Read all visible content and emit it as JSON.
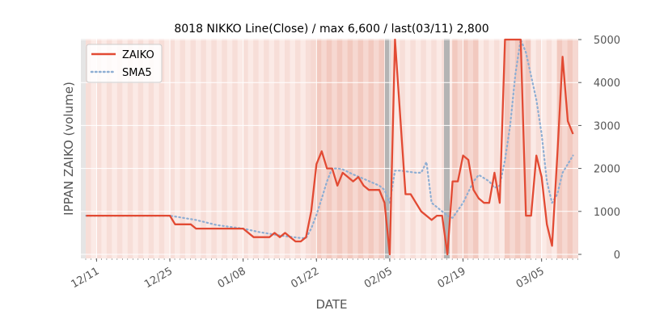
{
  "chart_data": {
    "type": "line",
    "title": "8018 NIKKO Line(Close) / max 6,600 / last(03/11) 2,800",
    "xlabel": "DATE",
    "ylabel": "IPPAN ZAIKO (volume)",
    "ylim": [
      0,
      5000
    ],
    "yticks": [
      0,
      1000,
      2000,
      3000,
      4000,
      5000
    ],
    "xlim": [
      "2023-12-08",
      "2024-03-12"
    ],
    "xticks": [
      {
        "date": "2023-12-11",
        "label": "12/11"
      },
      {
        "date": "2023-12-25",
        "label": "12/25"
      },
      {
        "date": "2024-01-08",
        "label": "01/08"
      },
      {
        "date": "2024-01-22",
        "label": "01/22"
      },
      {
        "date": "2024-02-05",
        "label": "02/05"
      },
      {
        "date": "2024-02-19",
        "label": "02/19"
      },
      {
        "date": "2024-03-05",
        "label": "03/05"
      }
    ],
    "grid": true,
    "legend_position": "top-left",
    "series": [
      {
        "name": "ZAIKO",
        "color": "#e24a33",
        "style": "solid",
        "points": [
          [
            "2023-12-09",
            900
          ],
          [
            "2023-12-25",
            900
          ],
          [
            "2023-12-26",
            700
          ],
          [
            "2023-12-29",
            700
          ],
          [
            "2023-12-30",
            600
          ],
          [
            "2024-01-08",
            600
          ],
          [
            "2024-01-10",
            400
          ],
          [
            "2024-01-13",
            400
          ],
          [
            "2024-01-14",
            500
          ],
          [
            "2024-01-15",
            400
          ],
          [
            "2024-01-16",
            500
          ],
          [
            "2024-01-17",
            400
          ],
          [
            "2024-01-18",
            300
          ],
          [
            "2024-01-19",
            300
          ],
          [
            "2024-01-20",
            400
          ],
          [
            "2024-01-21",
            1000
          ],
          [
            "2024-01-22",
            2100
          ],
          [
            "2024-01-23",
            2400
          ],
          [
            "2024-01-24",
            2000
          ],
          [
            "2024-01-25",
            2000
          ],
          [
            "2024-01-26",
            1600
          ],
          [
            "2024-01-27",
            1900
          ],
          [
            "2024-01-29",
            1700
          ],
          [
            "2024-01-30",
            1800
          ],
          [
            "2024-01-31",
            1600
          ],
          [
            "2024-02-01",
            1500
          ],
          [
            "2024-02-03",
            1500
          ],
          [
            "2024-02-04",
            1200
          ],
          [
            "2024-02-05",
            0
          ],
          [
            "2024-02-06",
            5000
          ],
          [
            "2024-02-07",
            3200
          ],
          [
            "2024-02-08",
            1400
          ],
          [
            "2024-02-09",
            1400
          ],
          [
            "2024-02-10",
            1200
          ],
          [
            "2024-02-11",
            1000
          ],
          [
            "2024-02-13",
            800
          ],
          [
            "2024-02-14",
            900
          ],
          [
            "2024-02-15",
            900
          ],
          [
            "2024-02-16",
            0
          ],
          [
            "2024-02-17",
            1700
          ],
          [
            "2024-02-18",
            1700
          ],
          [
            "2024-02-19",
            2300
          ],
          [
            "2024-02-20",
            2200
          ],
          [
            "2024-02-21",
            1500
          ],
          [
            "2024-02-22",
            1300
          ],
          [
            "2024-02-23",
            1200
          ],
          [
            "2024-02-24",
            1200
          ],
          [
            "2024-02-25",
            1900
          ],
          [
            "2024-02-26",
            1200
          ],
          [
            "2024-02-27",
            5000
          ],
          [
            "2024-03-01",
            5000
          ],
          [
            "2024-03-02",
            900
          ],
          [
            "2024-03-03",
            900
          ],
          [
            "2024-03-04",
            2300
          ],
          [
            "2024-03-05",
            1800
          ],
          [
            "2024-03-06",
            700
          ],
          [
            "2024-03-07",
            200
          ],
          [
            "2024-03-08",
            2300
          ],
          [
            "2024-03-09",
            4600
          ],
          [
            "2024-03-10",
            3100
          ],
          [
            "2024-03-11",
            2800
          ]
        ]
      },
      {
        "name": "SMA5",
        "color": "#8eaed3",
        "style": "dotted",
        "points": [
          [
            "2023-12-09",
            900
          ],
          [
            "2023-12-25",
            900
          ],
          [
            "2023-12-30",
            800
          ],
          [
            "2024-01-03",
            680
          ],
          [
            "2024-01-08",
            600
          ],
          [
            "2024-01-11",
            520
          ],
          [
            "2024-01-15",
            440
          ],
          [
            "2024-01-19",
            380
          ],
          [
            "2024-01-20",
            380
          ],
          [
            "2024-01-21",
            600
          ],
          [
            "2024-01-22",
            920
          ],
          [
            "2024-01-23",
            1300
          ],
          [
            "2024-01-24",
            1700
          ],
          [
            "2024-01-25",
            2000
          ],
          [
            "2024-01-26",
            2000
          ],
          [
            "2024-01-27",
            1980
          ],
          [
            "2024-01-29",
            1860
          ],
          [
            "2024-01-31",
            1760
          ],
          [
            "2024-02-03",
            1600
          ],
          [
            "2024-02-04",
            1500
          ],
          [
            "2024-02-05",
            1200
          ],
          [
            "2024-02-06",
            1950
          ],
          [
            "2024-02-07",
            1950
          ],
          [
            "2024-02-10",
            1900
          ],
          [
            "2024-02-11",
            1900
          ],
          [
            "2024-02-12",
            2150
          ],
          [
            "2024-02-13",
            1200
          ],
          [
            "2024-02-15",
            1000
          ],
          [
            "2024-02-16",
            900
          ],
          [
            "2024-02-17",
            850
          ],
          [
            "2024-02-19",
            1200
          ],
          [
            "2024-02-21",
            1700
          ],
          [
            "2024-02-22",
            1850
          ],
          [
            "2024-02-24",
            1700
          ],
          [
            "2024-02-25",
            1550
          ],
          [
            "2024-02-26",
            1600
          ],
          [
            "2024-02-27",
            2200
          ],
          [
            "2024-02-28",
            3000
          ],
          [
            "2024-02-29",
            4200
          ],
          [
            "2024-03-01",
            5000
          ],
          [
            "2024-03-02",
            4700
          ],
          [
            "2024-03-04",
            3600
          ],
          [
            "2024-03-05",
            2800
          ],
          [
            "2024-03-06",
            1700
          ],
          [
            "2024-03-07",
            1200
          ],
          [
            "2024-03-08",
            1400
          ],
          [
            "2024-03-09",
            1900
          ],
          [
            "2024-03-10",
            2100
          ],
          [
            "2024-03-11",
            2300
          ]
        ]
      }
    ]
  }
}
